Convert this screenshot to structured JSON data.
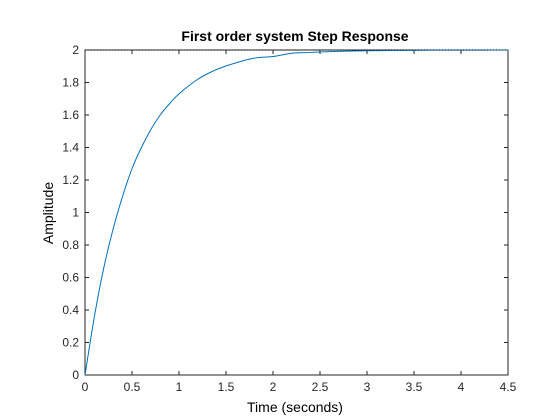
{
  "chart_data": {
    "type": "line",
    "title": "First order system Step Response",
    "xlabel": "Time (seconds)",
    "ylabel": "Amplitude",
    "xlim": [
      0,
      4.5
    ],
    "ylim": [
      0,
      2
    ],
    "xticks": [
      0,
      0.5,
      1,
      1.5,
      2,
      2.5,
      3,
      3.5,
      4,
      4.5
    ],
    "xtick_labels": [
      "0",
      "0.5",
      "1",
      "1.5",
      "2",
      "2.5",
      "3",
      "3.5",
      "4",
      "4.5"
    ],
    "yticks": [
      0,
      0.2,
      0.4,
      0.6,
      0.8,
      1,
      1.2,
      1.4,
      1.6,
      1.8,
      2
    ],
    "ytick_labels": [
      "0",
      "0.2",
      "0.4",
      "0.6",
      "0.8",
      "1",
      "1.2",
      "1.4",
      "1.6",
      "1.8",
      "2"
    ],
    "grid": false,
    "series": [
      {
        "color": "#0072BD",
        "x": [
          0,
          0.1,
          0.2,
          0.3,
          0.4,
          0.5,
          0.6,
          0.7,
          0.8,
          0.9,
          1.0,
          1.2,
          1.4,
          1.6,
          1.8,
          2.0,
          2.2,
          2.4,
          2.6,
          2.8,
          3.0,
          3.25,
          3.5,
          3.75,
          4.0,
          4.25,
          4.5
        ],
        "y": [
          0,
          0.36,
          0.66,
          0.9,
          1.1,
          1.27,
          1.4,
          1.51,
          1.6,
          1.67,
          1.73,
          1.82,
          1.88,
          1.92,
          1.95,
          1.96,
          1.98,
          1.985,
          1.99,
          1.993,
          1.995,
          1.997,
          1.998,
          1.999,
          1.9993,
          1.9996,
          1.9998
        ]
      }
    ]
  },
  "colors": {
    "axis": "#262626",
    "line": "#0072BD",
    "background": "#ffffff"
  }
}
